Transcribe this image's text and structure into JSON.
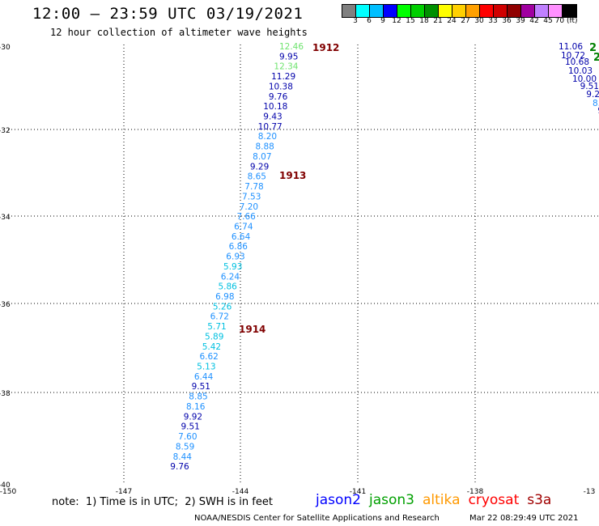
{
  "header": {
    "title": "12:00 – 23:59 UTC 03/19/2021",
    "subtitle": "12 hour collection of altimeter wave heights"
  },
  "legend": {
    "colors": [
      "#808080",
      "#00ffff",
      "#00bfff",
      "#0000ff",
      "#00ff00",
      "#00d000",
      "#009000",
      "#ffff00",
      "#ffd000",
      "#ffa000",
      "#ff0000",
      "#d00000",
      "#900000",
      "#a000a0",
      "#c080ff",
      "#ff90ff",
      "#000000"
    ],
    "ticks": [
      "3",
      "6",
      "9",
      "12",
      "15",
      "18",
      "21",
      "24",
      "27",
      "30",
      "33",
      "36",
      "39",
      "42",
      "45",
      "70 (ft)"
    ]
  },
  "map": {
    "lon_range": [
      -150,
      -138
    ],
    "lat_range": [
      -40,
      -30
    ],
    "lon_ticks": [
      "-150",
      "-147",
      "-144",
      "-141",
      "-138",
      "-13"
    ],
    "lat_ticks": [
      "-30",
      "-32",
      "-34",
      "-36",
      "-38",
      "-40"
    ],
    "gridlines": "dotted"
  },
  "observations": [
    {
      "swh": "12.46",
      "color": "#6ee36e"
    },
    {
      "swh": "9.95",
      "color": "#0000aa"
    },
    {
      "swh": "12.34",
      "color": "#6ee36e"
    },
    {
      "swh": "11.29",
      "color": "#0000aa"
    },
    {
      "swh": "10.38",
      "color": "#0000aa"
    },
    {
      "swh": "9.76",
      "color": "#0000aa"
    },
    {
      "swh": "10.18",
      "color": "#0000aa"
    },
    {
      "swh": "9.43",
      "color": "#0000aa"
    },
    {
      "swh": "10.77",
      "color": "#0000aa"
    },
    {
      "swh": "8.20",
      "color": "#1e90ff"
    },
    {
      "swh": "8.88",
      "color": "#1e90ff"
    },
    {
      "swh": "8.07",
      "color": "#1e90ff"
    },
    {
      "swh": "9.29",
      "color": "#0000aa"
    },
    {
      "swh": "8.65",
      "color": "#1e90ff"
    },
    {
      "swh": "7.78",
      "color": "#1e90ff"
    },
    {
      "swh": "7.53",
      "color": "#1e90ff"
    },
    {
      "swh": "7.20",
      "color": "#1e90ff"
    },
    {
      "swh": "7.66",
      "color": "#1e90ff"
    },
    {
      "swh": "6.74",
      "color": "#1e90ff"
    },
    {
      "swh": "6.64",
      "color": "#1e90ff"
    },
    {
      "swh": "6.86",
      "color": "#1e90ff"
    },
    {
      "swh": "6.93",
      "color": "#1e90ff"
    },
    {
      "swh": "5.93",
      "color": "#00c0e0"
    },
    {
      "swh": "6.24",
      "color": "#1e90ff"
    },
    {
      "swh": "5.86",
      "color": "#00c0e0"
    },
    {
      "swh": "6.98",
      "color": "#1e90ff"
    },
    {
      "swh": "5.26",
      "color": "#00c0e0"
    },
    {
      "swh": "6.72",
      "color": "#1e90ff"
    },
    {
      "swh": "5.71",
      "color": "#00c0e0"
    },
    {
      "swh": "5.89",
      "color": "#00c0e0"
    },
    {
      "swh": "5.42",
      "color": "#00c0e0"
    },
    {
      "swh": "6.62",
      "color": "#1e90ff"
    },
    {
      "swh": "5.13",
      "color": "#00c0e0"
    },
    {
      "swh": "6.44",
      "color": "#1e90ff"
    },
    {
      "swh": "9.51",
      "color": "#0000aa"
    },
    {
      "swh": "8.85",
      "color": "#1e90ff"
    },
    {
      "swh": "8.16",
      "color": "#1e90ff"
    },
    {
      "swh": "9.92",
      "color": "#0000aa"
    },
    {
      "swh": "9.51",
      "color": "#0000aa"
    },
    {
      "swh": "7.60",
      "color": "#1e90ff"
    },
    {
      "swh": "8.59",
      "color": "#1e90ff"
    },
    {
      "swh": "8.44",
      "color": "#1e90ff"
    },
    {
      "swh": "9.76",
      "color": "#0000aa"
    }
  ],
  "observations_east": [
    {
      "swh": "11.06",
      "color": "#0000aa"
    },
    {
      "swh": "10.72",
      "color": "#0000aa"
    },
    {
      "swh": "10.68",
      "color": "#0000aa"
    },
    {
      "swh": "10.03",
      "color": "#0000aa"
    },
    {
      "swh": "10.00",
      "color": "#0000aa"
    },
    {
      "swh": "9.51",
      "color": "#0000aa"
    },
    {
      "swh": "9.2",
      "color": "#0000aa"
    },
    {
      "swh": "8.",
      "color": "#1e90ff"
    },
    {
      "swh": "9",
      "color": "#0000aa"
    }
  ],
  "east_edge_marks": [
    {
      "text": "2",
      "color": "#008000"
    },
    {
      "text": "2",
      "color": "#008000"
    }
  ],
  "time_labels": [
    {
      "text": "1912",
      "color": "#800000"
    },
    {
      "text": "1913",
      "color": "#800000"
    },
    {
      "text": "1914",
      "color": "#800000"
    }
  ],
  "footer": {
    "note": "note:  1) Time is in UTC;  2) SWH is in feet",
    "satellites": [
      {
        "name": "jason2",
        "color": "#0000ff"
      },
      {
        "name": "jason3",
        "color": "#00a000"
      },
      {
        "name": "altika",
        "color": "#ff9900"
      },
      {
        "name": "cryosat",
        "color": "#ff0000"
      },
      {
        "name": "s3a",
        "color": "#a00000"
      }
    ],
    "credit": "NOAA/NESDIS Center for Satellite Applications and Research",
    "timestamp": "Mar 22 08:29:49 UTC 2021"
  }
}
